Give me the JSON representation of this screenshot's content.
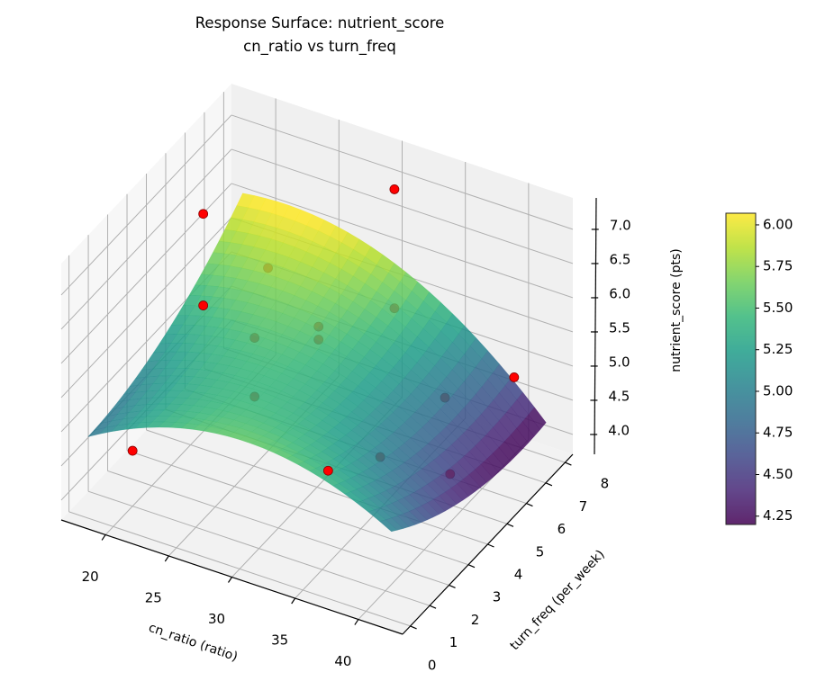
{
  "chart_data": {
    "type": "surface3d",
    "title": "Response Surface: nutrient_score",
    "subtitle": "cn_ratio vs turn_freq",
    "xlabel": "cn_ratio (ratio)",
    "ylabel": "turn_freq (per_week)",
    "zlabel": "nutrient_score (pts)",
    "xlim": [
      16.5,
      43.5
    ],
    "ylim": [
      -0.4,
      8.4
    ],
    "zlim": [
      3.71,
      7.46
    ],
    "xticks": [
      "20",
      "25",
      "30",
      "35",
      "40"
    ],
    "yticks": [
      "0",
      "1",
      "2",
      "3",
      "4",
      "5",
      "6",
      "7",
      "8"
    ],
    "zticks": [
      "4.0",
      "4.5",
      "5.0",
      "5.5",
      "6.0",
      "6.5",
      "7.0"
    ],
    "grid": true,
    "colormap": "viridis",
    "surface": {
      "x": [
        18,
        24,
        30,
        36,
        42
      ],
      "y": [
        0,
        2,
        4,
        6,
        8
      ],
      "z": [
        [
          4.9,
          5.41,
          5.6,
          5.46,
          5.0
        ],
        [
          4.98,
          5.37,
          5.43,
          5.17,
          4.59
        ],
        [
          5.2,
          5.47,
          5.41,
          5.02,
          4.32
        ],
        [
          5.56,
          5.71,
          5.53,
          5.02,
          4.19
        ],
        [
          6.07,
          6.09,
          5.79,
          5.16,
          4.2
        ]
      ]
    },
    "points": {
      "color": "#ff0000",
      "x": [
        20,
        21,
        21,
        30,
        37,
        41,
        20,
        30,
        24,
        24,
        22,
        22,
        34,
        35,
        39
      ],
      "y": [
        1,
        4,
        4,
        8,
        0,
        7,
        8,
        8,
        8,
        8,
        6,
        6,
        8,
        4,
        5
      ],
      "z": [
        4.52,
        7.15,
        5.81,
        6.87,
        5.58,
        5.1,
        5.1,
        5.13,
        4.49,
        4.3,
        4.8,
        3.94,
        4.07,
        4.46,
        4.16
      ]
    },
    "colorbar": {
      "range": [
        4.2,
        6.07
      ],
      "ticks": [
        "4.25",
        "4.50",
        "4.75",
        "5.00",
        "5.25",
        "5.50",
        "5.75",
        "6.00"
      ]
    }
  }
}
